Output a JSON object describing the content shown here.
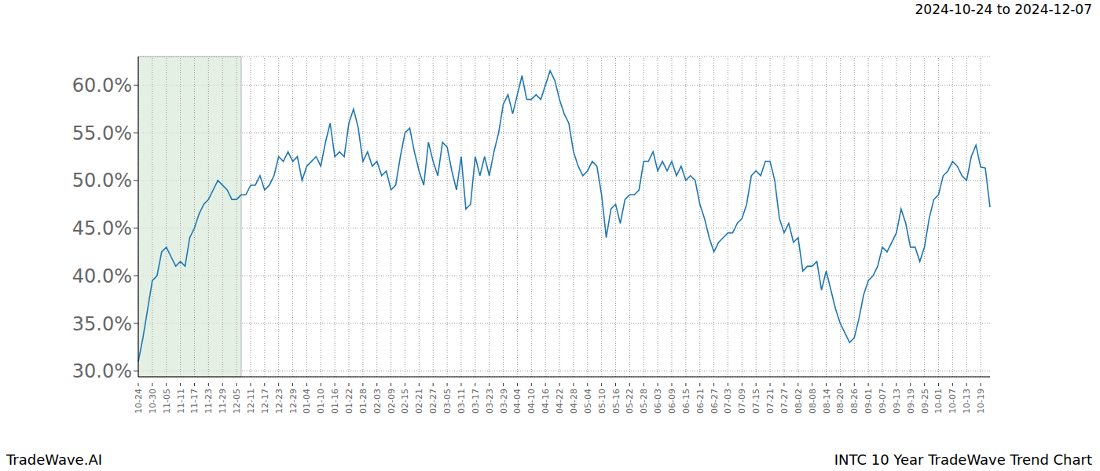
{
  "chart_data": {
    "type": "line",
    "title": "2024-10-24 to 2024-12-07",
    "source": "TradeWave.AI",
    "footer": "INTC 10 Year TradeWave Trend Chart",
    "color": "#1f77b4",
    "grid": true,
    "highlight": {
      "start": 0,
      "end": 22,
      "color": "#d9ead9"
    },
    "categories": [
      "10-24",
      null,
      null,
      "10-30",
      null,
      null,
      "11-05",
      null,
      null,
      "11-11",
      null,
      null,
      "11-17",
      null,
      null,
      "11-23",
      null,
      null,
      "11-29",
      null,
      null,
      "12-05",
      null,
      null,
      "12-11",
      null,
      null,
      "12-17",
      null,
      null,
      "12-23",
      null,
      null,
      "12-29",
      null,
      null,
      "01-04",
      null,
      null,
      "01-10",
      null,
      null,
      "01-16",
      null,
      null,
      "01-22",
      null,
      null,
      "01-28",
      null,
      null,
      "02-03",
      null,
      null,
      "02-09",
      null,
      null,
      "02-15",
      null,
      null,
      "02-21",
      null,
      null,
      "02-27",
      null,
      null,
      "03-05",
      null,
      null,
      "03-11",
      null,
      null,
      "03-17",
      null,
      null,
      "03-23",
      null,
      null,
      "03-29",
      null,
      null,
      "04-04",
      null,
      null,
      "04-10",
      null,
      null,
      "04-16",
      null,
      null,
      "04-22",
      null,
      null,
      "04-28",
      null,
      null,
      "05-04",
      null,
      null,
      "05-10",
      null,
      null,
      "05-16",
      null,
      null,
      "05-22",
      null,
      null,
      "05-28",
      null,
      null,
      "06-03",
      null,
      null,
      "06-09",
      null,
      null,
      "06-15",
      null,
      null,
      "06-21",
      null,
      null,
      "06-27",
      null,
      null,
      "07-03",
      null,
      null,
      "07-09",
      null,
      null,
      "07-15",
      null,
      null,
      "07-21",
      null,
      null,
      "07-27",
      null,
      null,
      "08-02",
      null,
      null,
      "08-08",
      null,
      null,
      "08-14",
      null,
      null,
      "08-20",
      null,
      null,
      "08-26",
      null,
      null,
      "09-01",
      null,
      null,
      "09-07",
      null,
      null,
      "09-13",
      null,
      null,
      "09-19",
      null,
      null,
      "09-25",
      null,
      null,
      "10-01",
      null,
      null,
      "10-07",
      null,
      null,
      "10-13",
      null,
      null,
      "10-19",
      null,
      null
    ],
    "values": [
      31,
      33.5,
      36.5,
      39.5,
      40,
      42.5,
      43,
      42,
      41,
      41.5,
      41,
      44,
      45,
      46.5,
      47.5,
      48,
      49,
      50,
      49.5,
      49,
      48,
      48,
      48.5,
      48.5,
      49.5,
      49.5,
      50.5,
      49,
      49.5,
      50.5,
      52.5,
      52,
      53,
      52,
      52.5,
      50,
      51.5,
      52,
      52.5,
      51.5,
      54,
      56,
      52.5,
      53,
      52.5,
      56,
      57.5,
      55.5,
      52,
      53,
      51.5,
      52,
      50.5,
      51,
      49,
      49.5,
      52.5,
      55,
      55.5,
      53,
      51,
      49.5,
      54,
      52,
      50.5,
      54,
      53.5,
      51,
      49,
      52.5,
      47,
      47.5,
      52.5,
      50.5,
      52.5,
      50.5,
      53,
      55,
      58,
      59,
      57,
      59,
      61,
      58.5,
      58.5,
      59,
      58.5,
      60,
      61.5,
      60.5,
      58.5,
      57,
      56,
      53,
      51.5,
      50.5,
      51,
      52,
      51.5,
      48.5,
      44,
      47,
      47.5,
      45.5,
      48,
      48.5,
      48.5,
      49,
      52,
      52,
      53,
      51,
      52,
      51,
      52,
      50.5,
      51.5,
      50,
      50.5,
      50,
      47.5,
      46,
      44,
      42.5,
      43.5,
      44,
      44.5,
      44.5,
      45.5,
      46,
      47.5,
      50.5,
      51,
      50.5,
      52,
      52,
      50,
      46,
      44.5,
      45.5,
      43.5,
      44,
      40.5,
      41,
      41,
      41.5,
      38.5,
      40.5,
      38.5,
      36.5,
      35,
      34,
      33,
      33.5,
      35.5,
      38,
      39.5,
      40,
      41,
      43,
      42.5,
      43.5,
      44.5,
      47,
      45.5,
      43,
      43,
      41.5,
      43,
      46,
      48,
      48.5,
      50.5,
      51,
      52,
      51.5,
      50.5,
      50,
      52.5,
      53.7,
      51.4,
      51.3,
      47.2
    ],
    "ylim": [
      29.4,
      63
    ],
    "yticks": [
      {
        "value": 30,
        "label": "30.0%"
      },
      {
        "value": 35,
        "label": "35.0%"
      },
      {
        "value": 40,
        "label": "40.0%"
      },
      {
        "value": 45,
        "label": "45.0%"
      },
      {
        "value": 50,
        "label": "50.0%"
      },
      {
        "value": 55,
        "label": "55.0%"
      },
      {
        "value": 60,
        "label": "60.0%"
      }
    ]
  }
}
